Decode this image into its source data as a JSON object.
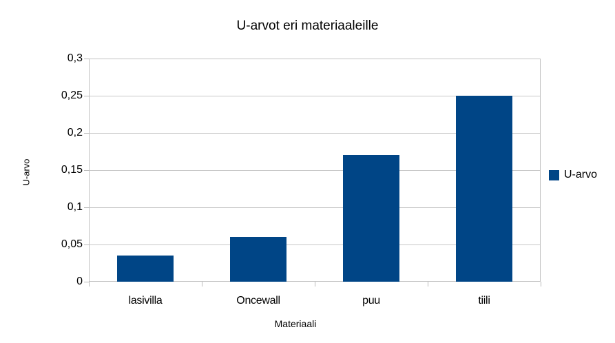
{
  "chart_data": {
    "type": "bar",
    "title": "U-arvot eri materiaaleille",
    "xlabel": "Materiaali",
    "ylabel": "U-arvo",
    "categories": [
      "lasivilla",
      "Oncewall",
      "puu",
      "tiili"
    ],
    "series": [
      {
        "name": "U-arvo",
        "values": [
          0.035,
          0.06,
          0.17,
          0.25
        ],
        "color": "#004586"
      }
    ],
    "ylim": [
      0,
      0.3
    ],
    "yticks": [
      0,
      0.05,
      0.1,
      0.15,
      0.2,
      0.25,
      0.3
    ],
    "ytick_labels": [
      "0",
      "0,05",
      "0,1",
      "0,15",
      "0,2",
      "0,25",
      "0,3"
    ],
    "grid": true,
    "legend_position": "right",
    "colors": {
      "bar": "#004586",
      "axis": "#b9b9b9",
      "grid": "#c6c6c6",
      "text": "#000000",
      "background": "#ffffff"
    }
  },
  "legend": {
    "items": [
      {
        "label": "U-arvo",
        "color": "#004586"
      }
    ]
  }
}
